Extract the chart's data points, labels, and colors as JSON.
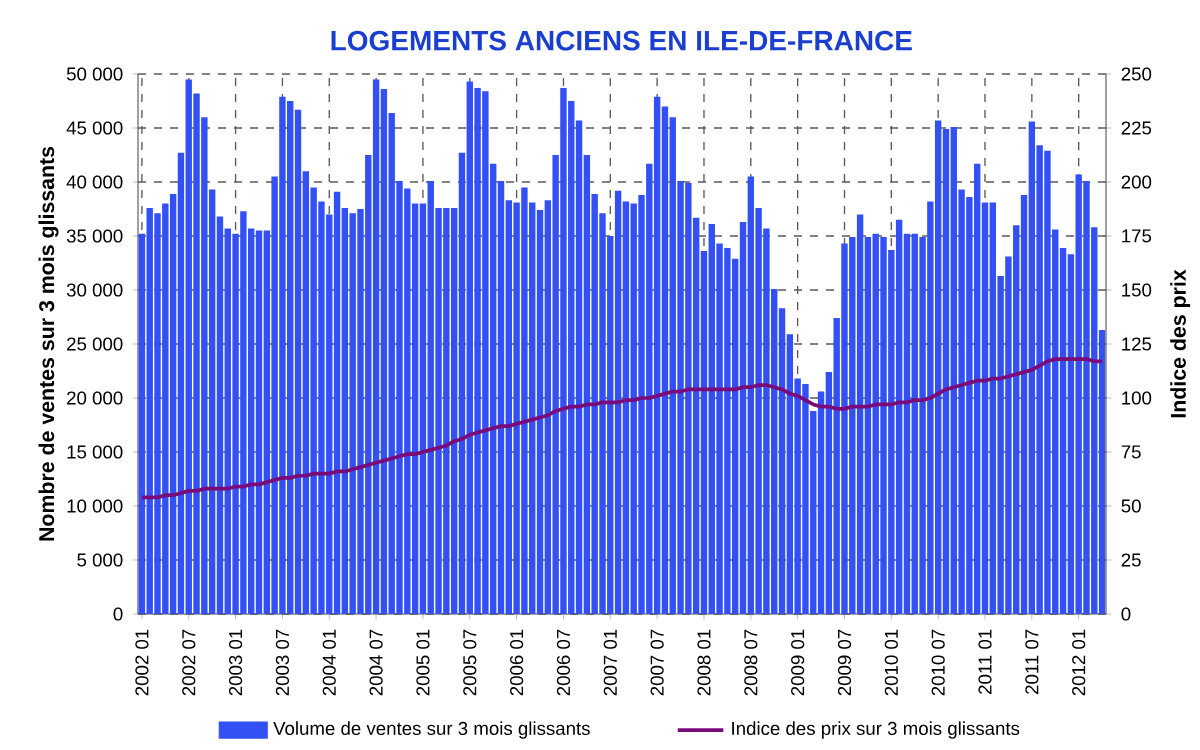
{
  "chart_data": {
    "type": "bar",
    "title": "LOGEMENTS ANCIENS EN ILE-DE-FRANCE",
    "ylabel": "Nombre de ventes sur 3 mois glissants",
    "y2label": "Indice des prix",
    "categories": [
      "2002 01",
      null,
      null,
      null,
      null,
      null,
      "2002 07",
      null,
      null,
      null,
      null,
      null,
      "2003 01",
      null,
      null,
      null,
      null,
      null,
      "2003 07",
      null,
      null,
      null,
      null,
      null,
      "2004 01",
      null,
      null,
      null,
      null,
      null,
      "2004 07",
      null,
      null,
      null,
      null,
      null,
      "2005 01",
      null,
      null,
      null,
      null,
      null,
      "2005 07",
      null,
      null,
      null,
      null,
      null,
      "2006 01",
      null,
      null,
      null,
      null,
      null,
      "2006 07",
      null,
      null,
      null,
      null,
      null,
      "2007 01",
      null,
      null,
      null,
      null,
      null,
      "2007 07",
      null,
      null,
      null,
      null,
      null,
      "2008 01",
      null,
      null,
      null,
      null,
      null,
      "2008 07",
      null,
      null,
      null,
      null,
      null,
      "2009 01",
      null,
      null,
      null,
      null,
      null,
      "2009 07",
      null,
      null,
      null,
      null,
      null,
      "2010 01",
      null,
      null,
      null,
      null,
      null,
      "2010 07",
      null,
      null,
      null,
      null,
      null,
      "2011 01",
      null,
      null,
      null,
      null,
      null,
      "2011 07",
      null,
      null,
      null,
      null,
      null,
      "2012 01",
      null,
      null,
      null
    ],
    "series": [
      {
        "name": "Volume de ventes sur 3 mois glissants",
        "color": "#3350f5",
        "values": [
          35200,
          37600,
          37100,
          38000,
          38900,
          42700,
          49500,
          48200,
          46000,
          39300,
          36800,
          35700,
          35200,
          37300,
          35700,
          35500,
          35500,
          40500,
          47900,
          47500,
          46700,
          41000,
          39500,
          38200,
          37000,
          39100,
          37600,
          37100,
          37500,
          42500,
          49500,
          48600,
          46400,
          40100,
          39400,
          38000,
          38000,
          40100,
          37600,
          37600,
          37600,
          42700,
          49300,
          48700,
          48400,
          41700,
          40100,
          38300,
          38100,
          39500,
          38100,
          37400,
          38300,
          42500,
          48700,
          47500,
          45700,
          42500,
          38900,
          37100,
          35000,
          39200,
          38200,
          38000,
          38800,
          41700,
          47900,
          47000,
          46000,
          40100,
          39900,
          36700,
          33600,
          36100,
          34300,
          33900,
          32900,
          36300,
          40500,
          37600,
          35700,
          30100,
          28300,
          25900,
          21800,
          21300,
          18800,
          20600,
          22400,
          27400,
          34300,
          34900,
          37000,
          34900,
          35200,
          34900,
          33700,
          36500,
          35200,
          35200,
          34900,
          38200,
          45700,
          44900,
          45100,
          39300,
          38600,
          41700,
          38100,
          38100,
          31300,
          33100,
          36000,
          38800,
          45600,
          43400,
          42900,
          35600,
          33900,
          33300,
          40700,
          40100,
          35800,
          26300
        ]
      },
      {
        "name": "Indice des prix sur 3 mois glissants",
        "type": "line",
        "axis": "y2",
        "color": "#7a0a78",
        "values": [
          54,
          54,
          54,
          55,
          55,
          56,
          57,
          57,
          58,
          58,
          58,
          58,
          59,
          59,
          60,
          60,
          61,
          62,
          63,
          63,
          64,
          64,
          65,
          65,
          65,
          66,
          66,
          67,
          68,
          69,
          70,
          71,
          72,
          73,
          74,
          74,
          75,
          76,
          77,
          78,
          80,
          81,
          83,
          84,
          85,
          86,
          87,
          87,
          88,
          89,
          90,
          91,
          92,
          94,
          95,
          96,
          96,
          97,
          97,
          98,
          98,
          98,
          99,
          99,
          100,
          100,
          101,
          102,
          103,
          103,
          104,
          104,
          104,
          104,
          104,
          104,
          104,
          105,
          105,
          106,
          106,
          105,
          104,
          102,
          101,
          99,
          97,
          96,
          96,
          95,
          95,
          96,
          96,
          96,
          97,
          97,
          97,
          98,
          98,
          99,
          99,
          100,
          102,
          104,
          105,
          106,
          107,
          108,
          108,
          109,
          109,
          110,
          111,
          112,
          113,
          115,
          117,
          118,
          118,
          118,
          118,
          118,
          117,
          117
        ]
      }
    ],
    "ylim": [
      0,
      50000
    ],
    "yticks": [
      {
        "value": 0,
        "label": "0"
      },
      {
        "value": 5000,
        "label": "5 000"
      },
      {
        "value": 10000,
        "label": "10 000"
      },
      {
        "value": 15000,
        "label": "15 000"
      },
      {
        "value": 20000,
        "label": "20 000"
      },
      {
        "value": 25000,
        "label": "25 000"
      },
      {
        "value": 30000,
        "label": "30 000"
      },
      {
        "value": 35000,
        "label": "35 000"
      },
      {
        "value": 40000,
        "label": "40 000"
      },
      {
        "value": 45000,
        "label": "45 000"
      },
      {
        "value": 50000,
        "label": "50 000"
      }
    ],
    "y2lim": [
      0,
      250
    ],
    "y2ticks": [
      0,
      25,
      50,
      75,
      100,
      125,
      150,
      175,
      200,
      225,
      250
    ],
    "grid": true,
    "legend": "bottom"
  }
}
